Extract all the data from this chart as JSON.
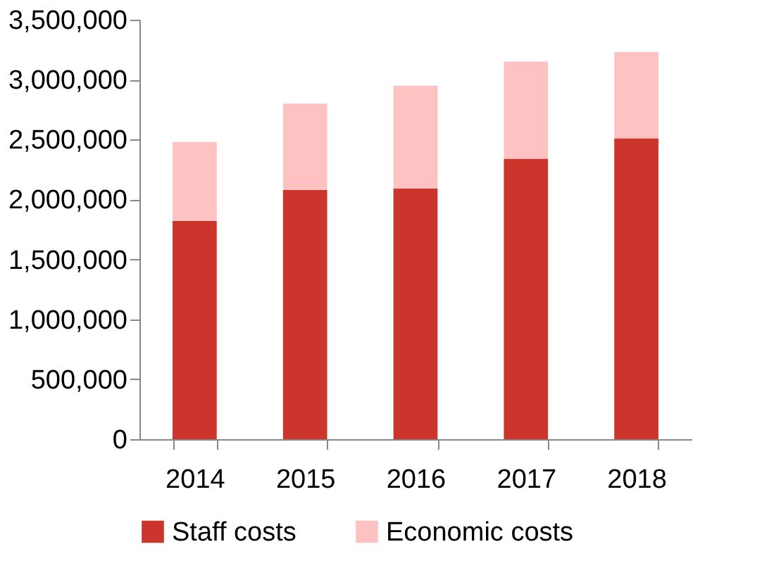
{
  "chart_data": {
    "type": "bar",
    "stacked": true,
    "categories": [
      "2014",
      "2015",
      "2016",
      "2017",
      "2018"
    ],
    "series": [
      {
        "name": "Staff costs",
        "color": "#cc352b",
        "values": [
          1820000,
          2080000,
          2090000,
          2340000,
          2510000
        ]
      },
      {
        "name": "Economic costs",
        "color": "#ffc2c2",
        "values": [
          660000,
          720000,
          860000,
          810000,
          720000
        ]
      }
    ],
    "ylim": [
      0,
      3500000
    ],
    "yticks": [
      0,
      {
        "value": 500000,
        "label": "500,000"
      },
      {
        "value": 1000000,
        "label": "1,000,000"
      },
      {
        "value": 1500000,
        "label": "1,500,000"
      },
      {
        "value": 2000000,
        "label": "2,000,000"
      },
      {
        "value": 2500000,
        "label": "2,500,000"
      },
      {
        "value": 3000000,
        "label": "3,000,000"
      },
      {
        "value": 3500000,
        "label": "3,500,000"
      }
    ],
    "grid": false,
    "legend": "bottom"
  }
}
